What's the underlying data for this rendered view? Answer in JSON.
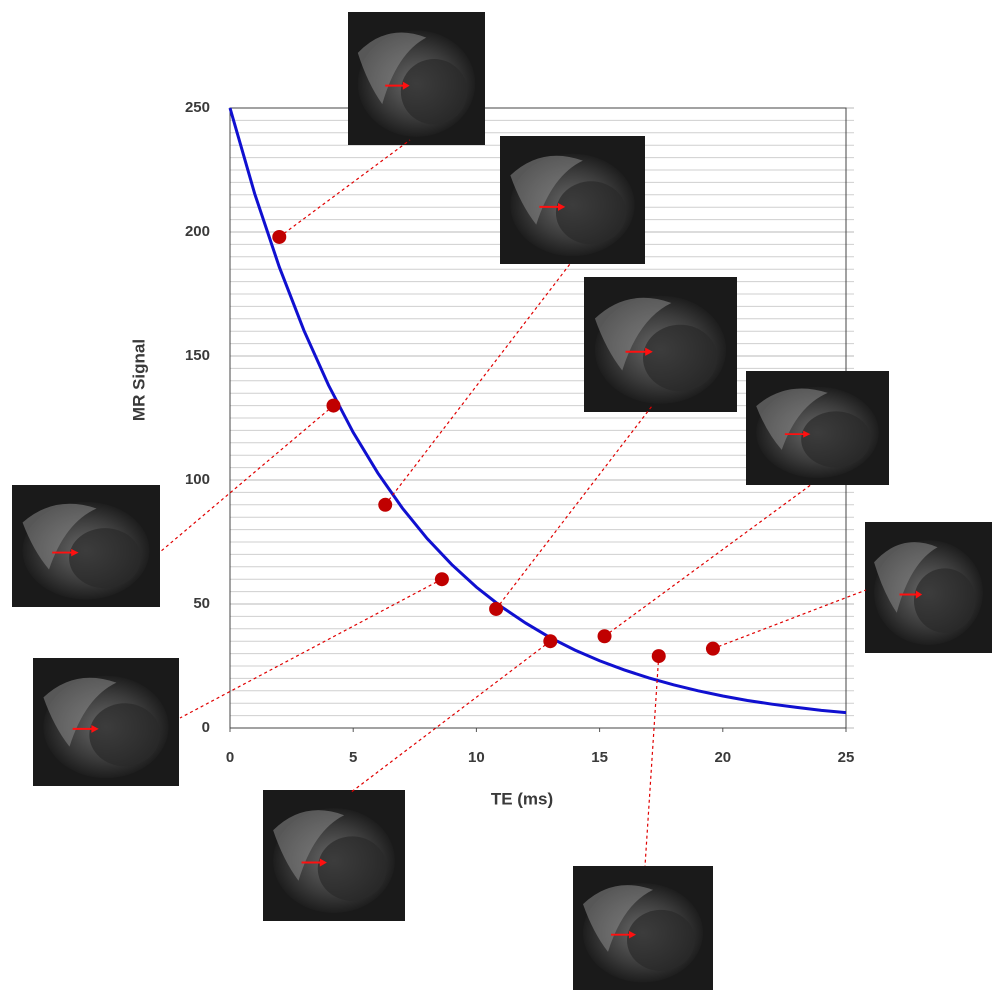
{
  "chart_data": {
    "type": "scatter",
    "x_label": "TE (ms)",
    "y_label": "MR Signal",
    "xlim": [
      0,
      25
    ],
    "ylim": [
      0,
      250
    ],
    "xticks": [
      0,
      5,
      10,
      15,
      20,
      25
    ],
    "yticks": [
      0,
      50,
      100,
      150,
      200,
      250
    ],
    "grid": true,
    "series": [
      {
        "type": "scatter",
        "color": "#c00000",
        "x": [
          2.0,
          4.2,
          6.3,
          8.6,
          10.8,
          13.0,
          15.2,
          17.4,
          19.6
        ],
        "values": [
          198,
          130,
          90,
          60,
          48,
          35,
          37,
          29,
          32
        ]
      },
      {
        "type": "line",
        "color": "#1010d0",
        "x": [
          0,
          1,
          2,
          3,
          4,
          5,
          6,
          7,
          8,
          9,
          10,
          11,
          12,
          13,
          14,
          15,
          16,
          17,
          18,
          19,
          20,
          21,
          22,
          23,
          24,
          25
        ],
        "values": [
          250,
          215.5,
          185.9,
          160.3,
          138.2,
          119.2,
          102.8,
          88.6,
          76.4,
          65.9,
          56.8,
          49.0,
          42.3,
          36.4,
          31.4,
          27.1,
          23.4,
          20.2,
          17.4,
          15.0,
          12.9,
          11.1,
          9.6,
          8.3,
          7.1,
          6.2
        ]
      }
    ]
  }
}
